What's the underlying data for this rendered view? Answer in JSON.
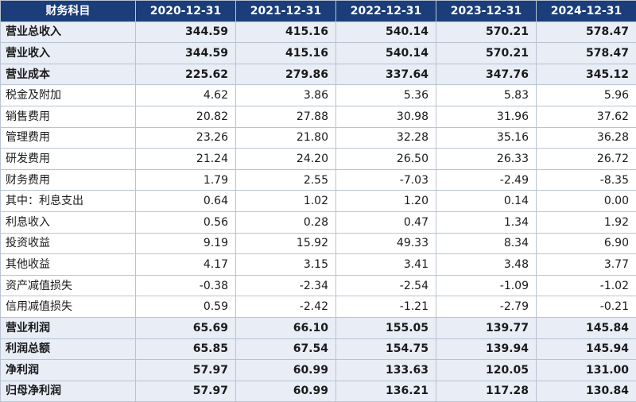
{
  "table": {
    "headers": [
      "财务科目",
      "2020-12-31",
      "2021-12-31",
      "2022-12-31",
      "2023-12-31",
      "2024-12-31"
    ],
    "rows": [
      {
        "label": "营业总收入",
        "bold": true,
        "values": [
          "344.59",
          "415.16",
          "540.14",
          "570.21",
          "578.47"
        ]
      },
      {
        "label": "营业收入",
        "bold": true,
        "values": [
          "344.59",
          "415.16",
          "540.14",
          "570.21",
          "578.47"
        ]
      },
      {
        "label": "营业成本",
        "bold": true,
        "values": [
          "225.62",
          "279.86",
          "337.64",
          "347.76",
          "345.12"
        ]
      },
      {
        "label": "税金及附加",
        "bold": false,
        "values": [
          "4.62",
          "3.86",
          "5.36",
          "5.83",
          "5.96"
        ]
      },
      {
        "label": "销售费用",
        "bold": false,
        "values": [
          "20.82",
          "27.88",
          "30.98",
          "31.96",
          "37.62"
        ]
      },
      {
        "label": "管理费用",
        "bold": false,
        "values": [
          "23.26",
          "21.80",
          "32.28",
          "35.16",
          "36.28"
        ]
      },
      {
        "label": "研发费用",
        "bold": false,
        "values": [
          "21.24",
          "24.20",
          "26.50",
          "26.33",
          "26.72"
        ]
      },
      {
        "label": "财务费用",
        "bold": false,
        "values": [
          "1.79",
          "2.55",
          "-7.03",
          "-2.49",
          "-8.35"
        ]
      },
      {
        "label": "其中：利息支出",
        "bold": false,
        "values": [
          "0.64",
          "1.02",
          "1.20",
          "0.14",
          "0.00"
        ]
      },
      {
        "label": "利息收入",
        "bold": false,
        "values": [
          "0.56",
          "0.28",
          "0.47",
          "1.34",
          "1.92"
        ]
      },
      {
        "label": "投资收益",
        "bold": false,
        "values": [
          "9.19",
          "15.92",
          "49.33",
          "8.34",
          "6.90"
        ]
      },
      {
        "label": "其他收益",
        "bold": false,
        "values": [
          "4.17",
          "3.15",
          "3.41",
          "3.48",
          "3.77"
        ]
      },
      {
        "label": "资产减值损失",
        "bold": false,
        "values": [
          "-0.38",
          "-2.34",
          "-2.54",
          "-1.09",
          "-1.02"
        ]
      },
      {
        "label": "信用减值损失",
        "bold": false,
        "values": [
          "0.59",
          "-2.42",
          "-1.21",
          "-2.79",
          "-0.21"
        ]
      },
      {
        "label": "营业利润",
        "bold": true,
        "values": [
          "65.69",
          "66.10",
          "155.05",
          "139.77",
          "145.84"
        ]
      },
      {
        "label": "利润总额",
        "bold": true,
        "values": [
          "65.85",
          "67.54",
          "154.75",
          "139.94",
          "145.94"
        ]
      },
      {
        "label": "净利润",
        "bold": true,
        "values": [
          "57.97",
          "60.99",
          "133.63",
          "120.05",
          "131.00"
        ]
      },
      {
        "label": "归母净利润",
        "bold": true,
        "values": [
          "57.97",
          "60.99",
          "136.21",
          "117.28",
          "130.84"
        ]
      }
    ]
  },
  "colors": {
    "header_bg": "#1b3d7a",
    "header_text": "#ffffff",
    "bold_row_bg": "#e8edf6",
    "normal_row_bg": "#ffffff",
    "border": "#b8c3d3"
  }
}
